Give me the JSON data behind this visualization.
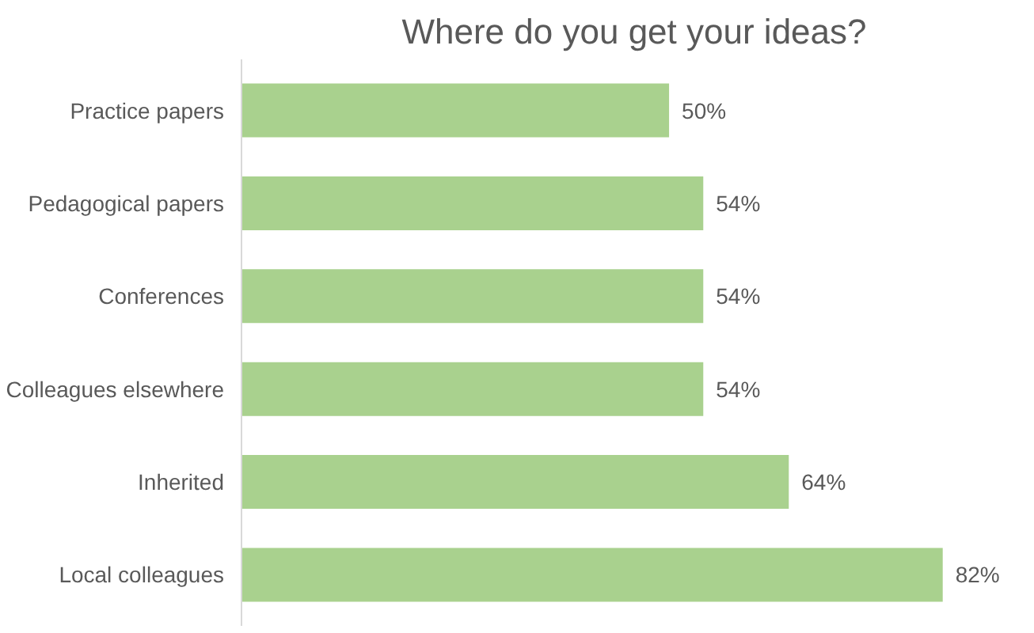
{
  "chart_data": {
    "type": "bar",
    "orientation": "horizontal",
    "title": "Where do you get your ideas?",
    "categories": [
      "Practice papers",
      "Pedagogical papers",
      "Conferences",
      "Colleagues elsewhere",
      "Inherited",
      "Local colleagues"
    ],
    "values": [
      50,
      54,
      54,
      54,
      64,
      82
    ],
    "value_labels": [
      "50%",
      "54%",
      "54%",
      "54%",
      "64%",
      "82%"
    ],
    "color": "#a9d18e",
    "grid": false
  }
}
